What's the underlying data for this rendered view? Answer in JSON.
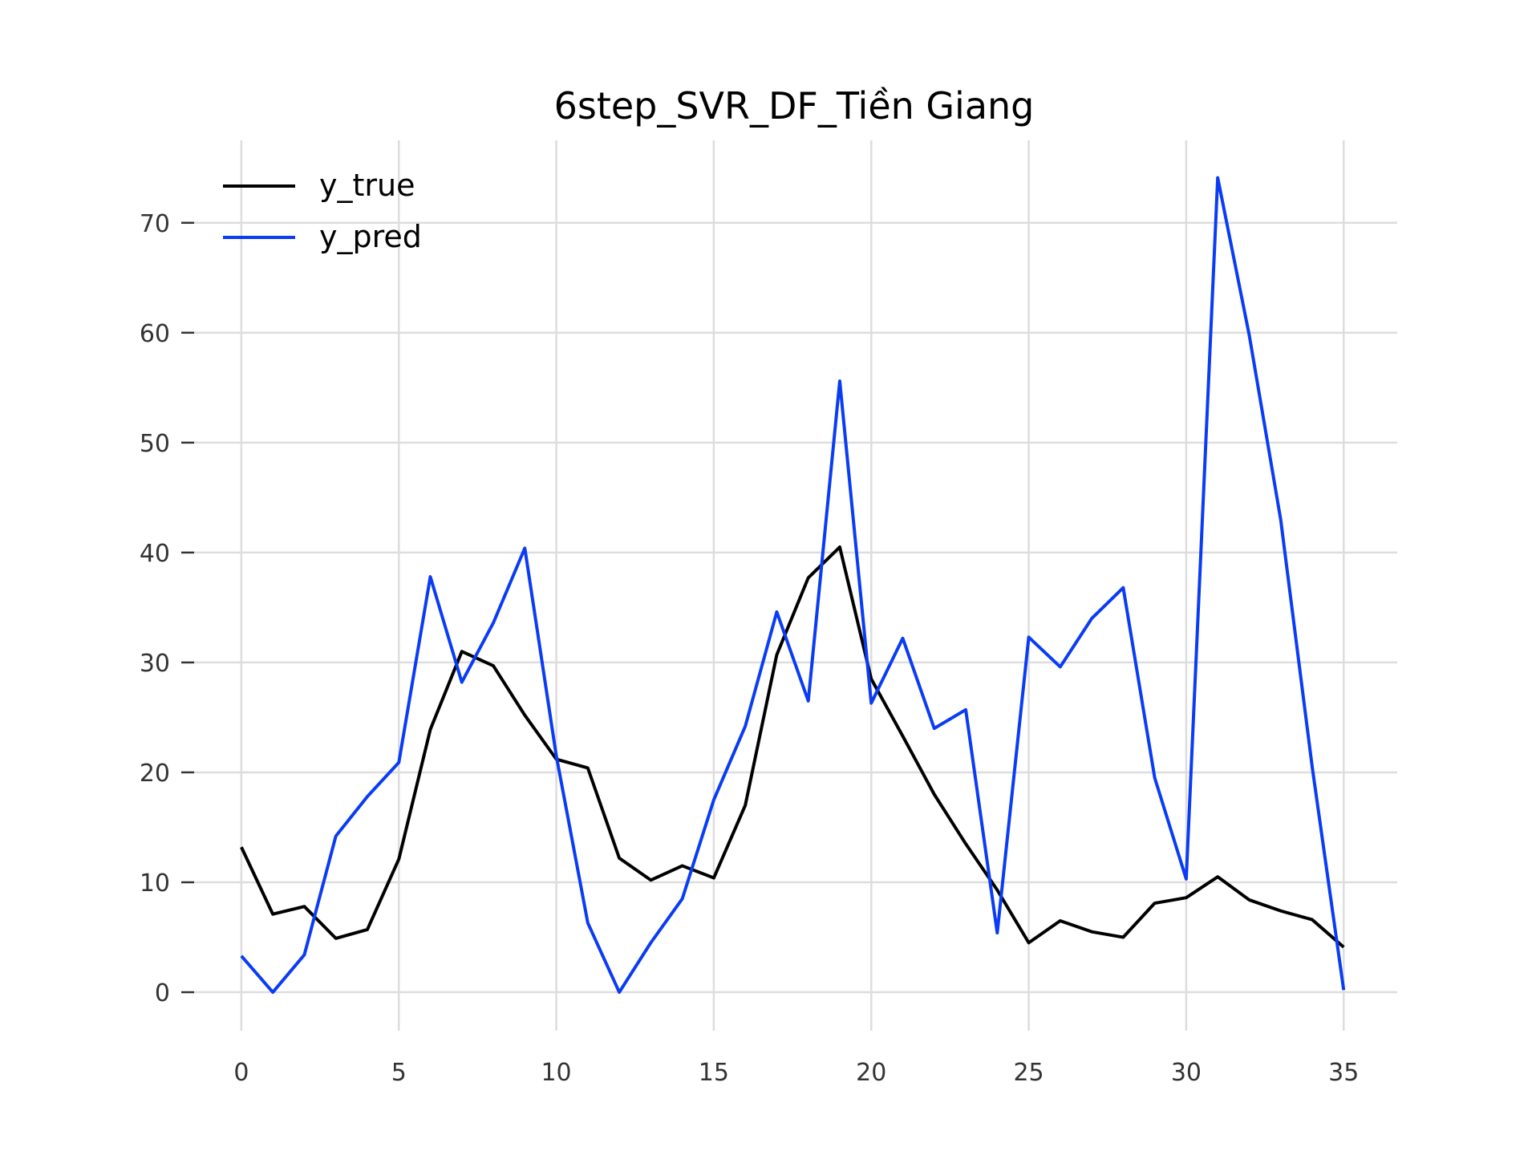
{
  "chart_data": {
    "type": "line",
    "title": "6step_SVR_DF_Tiền Giang",
    "xlabel": "",
    "ylabel": "",
    "xlim": [
      -1.5,
      36.7
    ],
    "ylim": [
      -3.5,
      77.5
    ],
    "xticks": [
      0,
      5,
      10,
      15,
      20,
      25,
      30,
      35
    ],
    "yticks": [
      0,
      10,
      20,
      30,
      40,
      50,
      60,
      70
    ],
    "grid": true,
    "legend_position": "top-left",
    "x": [
      0,
      1,
      2,
      3,
      4,
      5,
      6,
      7,
      8,
      9,
      10,
      11,
      12,
      13,
      14,
      15,
      16,
      17,
      18,
      19,
      20,
      21,
      22,
      23,
      24,
      25,
      26,
      27,
      28,
      29,
      30,
      31,
      32,
      33,
      34,
      35
    ],
    "series": [
      {
        "name": "y_true",
        "color": "#000000",
        "values": [
          13.2,
          7.1,
          7.8,
          4.9,
          5.7,
          12.1,
          23.9,
          31.0,
          29.7,
          25.2,
          21.2,
          20.4,
          12.2,
          10.2,
          11.5,
          10.4,
          17.0,
          30.7,
          37.7,
          40.5,
          28.5,
          23.3,
          18.0,
          13.5,
          9.3,
          4.5,
          6.5,
          5.5,
          5.0,
          8.1,
          8.6,
          10.5,
          8.4,
          7.4,
          6.6,
          4.1
        ]
      },
      {
        "name": "y_pred",
        "color": "#0a3cf5",
        "values": [
          3.3,
          0.0,
          3.4,
          14.2,
          17.8,
          20.9,
          37.8,
          28.2,
          33.6,
          40.4,
          21.5,
          6.3,
          0.0,
          4.5,
          8.5,
          17.5,
          24.2,
          34.6,
          26.5,
          55.6,
          26.3,
          32.2,
          24.0,
          25.7,
          5.4,
          32.3,
          29.6,
          34.0,
          36.8,
          19.5,
          10.3,
          74.1,
          59.8,
          43.0,
          20.5,
          0.2
        ]
      }
    ]
  }
}
